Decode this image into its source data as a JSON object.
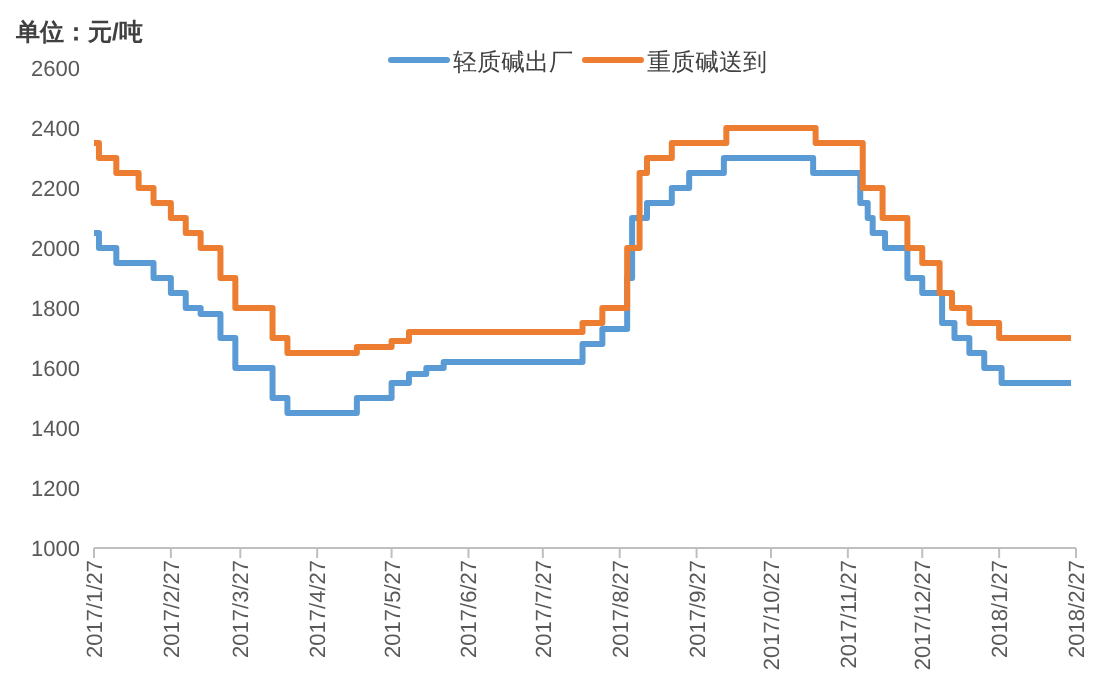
{
  "chart_data": {
    "type": "step",
    "ylabel": "单位：元/吨",
    "legend": "top",
    "xlim": [
      "2017-01-27",
      "2018-02-27"
    ],
    "xticks": [
      {
        "value": "2017-01-27",
        "label": "2017/1/27"
      },
      {
        "value": "2017-02-27",
        "label": "2017/2/27"
      },
      {
        "value": "2017-03-27",
        "label": "2017/3/27"
      },
      {
        "value": "2017-04-27",
        "label": "2017/4/27"
      },
      {
        "value": "2017-05-27",
        "label": "2017/5/27"
      },
      {
        "value": "2017-06-27",
        "label": "2017/6/27"
      },
      {
        "value": "2017-07-27",
        "label": "2017/7/27"
      },
      {
        "value": "2017-08-27",
        "label": "2017/8/27"
      },
      {
        "value": "2017-09-27",
        "label": "2017/9/27"
      },
      {
        "value": "2017-10-27",
        "label": "2017/10/27"
      },
      {
        "value": "2017-11-27",
        "label": "2017/11/27"
      },
      {
        "value": "2017-12-27",
        "label": "2017/12/27"
      },
      {
        "value": "2018-01-27",
        "label": "2018/1/27"
      },
      {
        "value": "2018-02-27",
        "label": "2018/2/27"
      }
    ],
    "ylim": [
      1000,
      2600
    ],
    "yticks": [
      1000,
      1200,
      1400,
      1600,
      1800,
      2000,
      2200,
      2400,
      2600
    ],
    "series": [
      {
        "name": "轻质碱出厂",
        "color": "#5b9bd5",
        "x": [
          "2017-01-27",
          "2017-01-29",
          "2017-02-05",
          "2017-02-20",
          "2017-02-27",
          "2017-03-05",
          "2017-03-11",
          "2017-03-19",
          "2017-03-25",
          "2017-04-09",
          "2017-04-15",
          "2017-05-13",
          "2017-05-27",
          "2017-06-03",
          "2017-06-10",
          "2017-06-17",
          "2017-08-12",
          "2017-08-20",
          "2017-08-30",
          "2017-09-01",
          "2017-09-07",
          "2017-09-17",
          "2017-09-24",
          "2017-10-08",
          "2017-11-13",
          "2017-12-02",
          "2017-12-05",
          "2017-12-07",
          "2017-12-12",
          "2017-12-21",
          "2017-12-27",
          "2018-01-04",
          "2018-01-09",
          "2018-01-15",
          "2018-01-21",
          "2018-01-28",
          "2018-02-25"
        ],
        "values": [
          2050,
          2000,
          1950,
          1900,
          1850,
          1800,
          1780,
          1700,
          1600,
          1500,
          1450,
          1500,
          1550,
          1580,
          1600,
          1620,
          1680,
          1730,
          1900,
          2100,
          2150,
          2200,
          2250,
          2300,
          2250,
          2150,
          2100,
          2050,
          2000,
          1900,
          1850,
          1750,
          1700,
          1650,
          1600,
          1550,
          1550
        ]
      },
      {
        "name": "重质碱送到",
        "color": "#ed7d31",
        "x": [
          "2017-01-27",
          "2017-01-29",
          "2017-02-05",
          "2017-02-14",
          "2017-02-20",
          "2017-02-27",
          "2017-03-05",
          "2017-03-11",
          "2017-03-19",
          "2017-03-25",
          "2017-04-09",
          "2017-04-15",
          "2017-05-13",
          "2017-05-27",
          "2017-06-03",
          "2017-08-12",
          "2017-08-20",
          "2017-08-30",
          "2017-09-04",
          "2017-09-07",
          "2017-09-17",
          "2017-10-09",
          "2017-11-14",
          "2017-12-03",
          "2017-12-11",
          "2017-12-21",
          "2017-12-27",
          "2018-01-03",
          "2018-01-08",
          "2018-01-15",
          "2018-01-27",
          "2018-02-25"
        ],
        "values": [
          2350,
          2300,
          2250,
          2200,
          2150,
          2100,
          2050,
          2000,
          1900,
          1800,
          1700,
          1650,
          1670,
          1690,
          1720,
          1750,
          1800,
          2000,
          2250,
          2300,
          2350,
          2400,
          2350,
          2200,
          2100,
          2000,
          1950,
          1850,
          1800,
          1750,
          1700,
          1700
        ]
      }
    ]
  }
}
